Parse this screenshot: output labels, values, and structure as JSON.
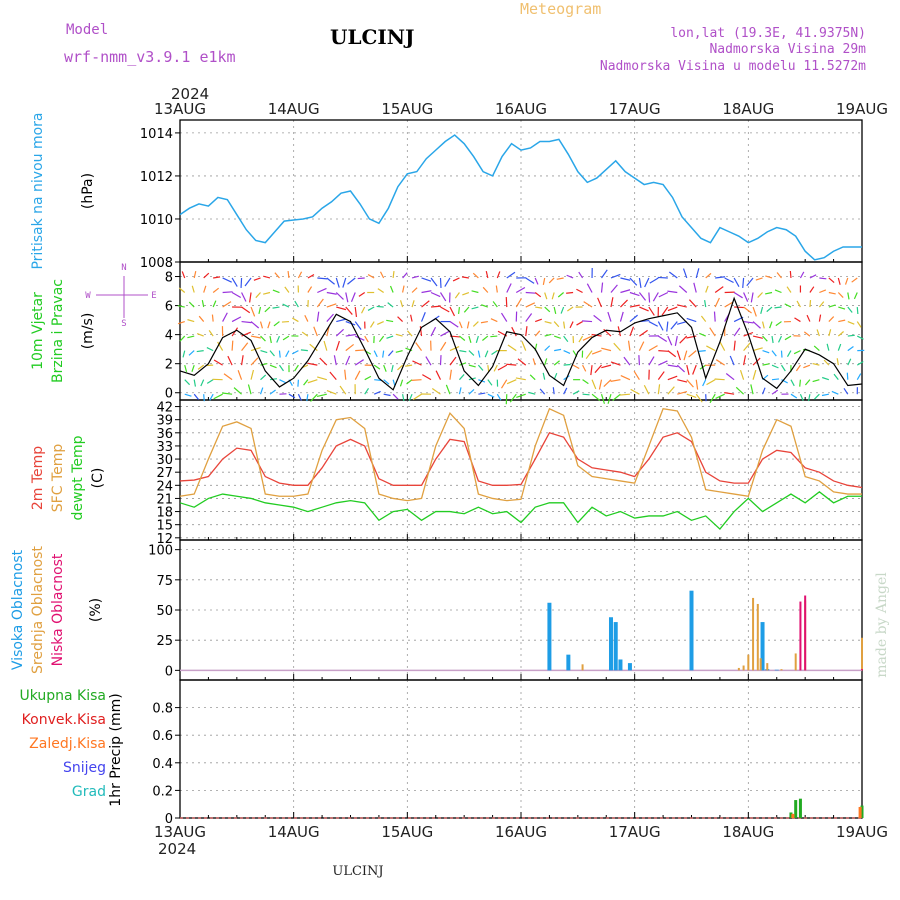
{
  "header": {
    "model_label": "Model",
    "model_name": "wrf-nmm_v3.9.1  e1km",
    "station": "ULCINJ",
    "product": "Meteogram",
    "coords": "lon,lat (19.3E, 41.9375N)",
    "elevation": "Nadmorska Visina 29m",
    "model_elevation": "Nadmorska Visina u modelu 11.5272m",
    "footer_station": "ULCINJ",
    "credit": "made by Angel"
  },
  "time_axis": {
    "year": "2024",
    "days": [
      "13AUG",
      "14AUG",
      "15AUG",
      "16AUG",
      "17AUG",
      "18AUG",
      "19AUG"
    ]
  },
  "colors": {
    "pressure": "#2aa6e8",
    "wind_speed": "#000000",
    "t2m": "#e8443a",
    "sfc": "#e0a040",
    "dewpt": "#22cc22",
    "high_cloud": "#1e9de6",
    "mid_cloud": "#e0a040",
    "low_cloud": "#e01070",
    "total_precip": "#22aa22",
    "conv_precip": "#e02020",
    "frz_precip": "#ff7722",
    "snow": "#4444ee",
    "hail": "#22bbbb",
    "model_title": "#b050c8",
    "product_title": "#f0c070",
    "wind_dir_label": "#b050c8"
  },
  "wind_legend": {
    "north": "N",
    "west": "W",
    "east": "E",
    "south": "S"
  },
  "panels": [
    {
      "id": "pressure",
      "labels": [
        "Pritisak na nivou mora"
      ],
      "unit": "(hPa)"
    },
    {
      "id": "wind",
      "labels": [
        "10m Vjetar",
        "Brzina i Pravac"
      ],
      "unit": "(m/s)"
    },
    {
      "id": "temp",
      "labels": [
        "2m Temp",
        "SFC Temp",
        "dewpt Temp"
      ],
      "unit": "(C)"
    },
    {
      "id": "cloud",
      "labels": [
        "Visoka Oblacnost",
        "Srednja Oblacnost",
        "Niska Oblacnost"
      ],
      "unit": "(%)"
    },
    {
      "id": "precip",
      "labels": [
        "Ukupna Kisa",
        "Konvek.Kisa",
        "Zaledj.Kisa",
        "Snijeg",
        "Grad"
      ],
      "unit": "1hr Precip (mm)"
    }
  ],
  "chart_data": [
    {
      "type": "line",
      "panel": "pressure",
      "ylabel": "Pritisak na nivou mora (hPa)",
      "ylim": [
        1008,
        1014.6
      ],
      "yticks": [
        1008,
        1010,
        1012,
        1014
      ],
      "grid": true,
      "x": [
        0,
        2,
        4,
        6,
        8,
        10,
        12,
        14,
        16,
        18,
        20,
        22,
        24,
        26,
        28,
        30,
        32,
        34,
        36,
        38,
        40,
        42,
        44,
        46,
        48,
        50,
        52,
        54,
        56,
        58,
        60,
        62,
        64,
        66,
        68,
        70,
        72,
        74,
        76,
        78,
        80,
        82,
        84,
        86,
        88,
        90,
        92,
        94,
        96,
        98,
        100,
        102,
        104,
        106,
        108,
        110,
        112,
        114,
        116,
        118,
        120,
        122,
        124,
        126,
        128,
        130,
        132,
        134,
        136,
        138,
        140,
        142,
        144
      ],
      "series": [
        {
          "values": [
            1010.2,
            1010.5,
            1010.7,
            1010.6,
            1011.0,
            1010.9,
            1010.2,
            1009.5,
            1009.0,
            1008.9,
            1009.4,
            1009.9,
            1009.95,
            1010.0,
            1010.1,
            1010.5,
            1010.8,
            1011.2,
            1011.3,
            1010.7,
            1010.0,
            1009.8,
            1010.5,
            1011.5,
            1012.1,
            1012.2,
            1012.8,
            1013.2,
            1013.6,
            1013.9,
            1013.5,
            1012.9,
            1012.2,
            1012.0,
            1012.9,
            1013.5,
            1013.2,
            1013.3,
            1013.6,
            1013.6,
            1013.7,
            1013.0,
            1012.2,
            1011.7,
            1011.9,
            1012.3,
            1012.7,
            1012.2,
            1011.9,
            1011.6,
            1011.7,
            1011.6,
            1011.0,
            1010.1,
            1009.6,
            1009.1,
            1008.9,
            1009.6,
            1009.4,
            1009.2,
            1008.9,
            1009.1,
            1009.4,
            1009.6,
            1009.5,
            1009.2,
            1008.5,
            1008.1,
            1008.2,
            1008.5,
            1008.7,
            1008.7,
            1008.7
          ]
        }
      ]
    },
    {
      "type": "line",
      "panel": "wind",
      "ylabel": "10m Vjetar Brzina i Pravac (m/s)",
      "ylim": [
        -0.5,
        9
      ],
      "yticks": [
        0,
        2,
        4,
        6,
        8
      ],
      "grid": true,
      "x": [
        0,
        3,
        6,
        9,
        12,
        15,
        18,
        21,
        24,
        27,
        30,
        33,
        36,
        39,
        42,
        45,
        48,
        51,
        54,
        57,
        60,
        63,
        66,
        69,
        72,
        75,
        78,
        81,
        84,
        87,
        90,
        93,
        96,
        99,
        102,
        105,
        108,
        111,
        114,
        117,
        120,
        123,
        126,
        129,
        132,
        135,
        138,
        141,
        144
      ],
      "series": [
        {
          "name": "speed",
          "values": [
            1.5,
            1.2,
            2.0,
            3.8,
            4.3,
            3.6,
            1.5,
            0.4,
            1.0,
            2.2,
            3.8,
            5.4,
            4.9,
            3.0,
            1.0,
            0.2,
            2.5,
            4.5,
            5.1,
            4.2,
            1.5,
            0.5,
            1.8,
            4.2,
            4.0,
            3.0,
            1.2,
            0.5,
            2.8,
            3.8,
            4.3,
            4.2,
            4.8,
            5.1,
            5.3,
            5.5,
            4.5,
            1.0,
            3.5,
            6.5,
            4.0,
            1.0,
            0.3,
            1.5,
            3.0,
            2.6,
            2.0,
            0.5,
            0.6
          ]
        }
      ]
    },
    {
      "type": "line",
      "panel": "temp",
      "ylabel": "Temp (C)",
      "ylim": [
        11.5,
        43.5
      ],
      "yticks": [
        12,
        15,
        18,
        21,
        24,
        27,
        30,
        33,
        36,
        39,
        42
      ],
      "grid": true,
      "x": [
        0,
        3,
        6,
        9,
        12,
        15,
        18,
        21,
        24,
        27,
        30,
        33,
        36,
        39,
        42,
        45,
        48,
        51,
        54,
        57,
        60,
        63,
        66,
        69,
        72,
        75,
        78,
        81,
        84,
        87,
        90,
        93,
        96,
        99,
        102,
        105,
        108,
        111,
        114,
        117,
        120,
        123,
        126,
        129,
        132,
        135,
        138,
        141,
        144
      ],
      "series": [
        {
          "name": "2m Temp",
          "values": [
            25.0,
            25.2,
            26.0,
            30.0,
            32.5,
            32.0,
            26.0,
            24.5,
            24.0,
            24.0,
            28.0,
            33.0,
            34.5,
            33.0,
            25.5,
            24.0,
            24.0,
            24.0,
            30.0,
            34.5,
            34.0,
            25.0,
            24.0,
            24.0,
            24.2,
            30.0,
            36.0,
            35.0,
            30.0,
            28.0,
            27.5,
            27.0,
            26.0,
            30.0,
            35.0,
            36.0,
            34.0,
            27.0,
            25.0,
            24.5,
            24.5,
            30.0,
            32.0,
            31.5,
            28.0,
            27.0,
            25.0,
            24.0,
            23.5
          ]
        },
        {
          "name": "SFC Temp",
          "values": [
            21.5,
            22.0,
            30.0,
            37.5,
            38.5,
            37.0,
            22.0,
            21.5,
            21.5,
            22.0,
            32.0,
            39.0,
            39.5,
            37.0,
            22.0,
            21.0,
            20.5,
            21.0,
            33.0,
            40.5,
            37.0,
            22.0,
            21.0,
            20.5,
            20.8,
            33.0,
            41.5,
            40.0,
            28.5,
            26.0,
            25.5,
            25.0,
            24.5,
            33.0,
            41.5,
            41.0,
            35.0,
            23.0,
            22.5,
            22.0,
            21.5,
            32.0,
            39.0,
            37.5,
            26.0,
            25.0,
            22.5,
            22.0,
            22.0
          ]
        },
        {
          "name": "dewpt Temp",
          "values": [
            20.0,
            19.0,
            21.0,
            22.0,
            21.5,
            21.0,
            20.0,
            19.5,
            19.0,
            18.0,
            19.0,
            20.0,
            20.5,
            20.0,
            16.0,
            18.0,
            18.5,
            16.0,
            18.0,
            18.0,
            17.5,
            19.0,
            17.5,
            18.0,
            15.5,
            19.0,
            20.0,
            20.0,
            15.5,
            19.0,
            17.0,
            18.0,
            16.5,
            17.0,
            17.0,
            18.0,
            16.0,
            17.0,
            14.0,
            18.0,
            21.0,
            18.0,
            20.0,
            22.0,
            20.0,
            22.5,
            20.0,
            21.5,
            21.5
          ]
        }
      ]
    },
    {
      "type": "bar",
      "panel": "cloud",
      "ylabel": "Oblacnost (%)",
      "ylim": [
        -8,
        108
      ],
      "yticks": [
        0,
        25,
        50,
        75,
        100
      ],
      "grid": true,
      "series": [
        {
          "name": "Visoka Oblacnost",
          "points": [
            [
              78,
              56
            ],
            [
              82,
              13
            ],
            [
              91,
              44
            ],
            [
              92,
              40
            ],
            [
              93,
              9
            ],
            [
              95,
              6
            ],
            [
              108,
              66
            ],
            [
              123,
              40
            ],
            [
              124,
              1
            ],
            [
              126,
              0.5
            ]
          ]
        },
        {
          "name": "Srednja Oblacnost",
          "points": [
            [
              85,
              5
            ],
            [
              118,
              2
            ],
            [
              119,
              4
            ],
            [
              120,
              13
            ],
            [
              121,
              60
            ],
            [
              122,
              55
            ],
            [
              122.6,
              10
            ],
            [
              124,
              6
            ],
            [
              127,
              1
            ],
            [
              130,
              14
            ],
            [
              132,
              58
            ],
            [
              144,
              27
            ]
          ]
        },
        {
          "name": "Niska Oblacnost",
          "points": [
            [
              131,
              57
            ],
            [
              132,
              62
            ],
            [
              144,
              1
            ]
          ]
        }
      ]
    },
    {
      "type": "bar",
      "panel": "precip",
      "ylabel": "1hr Precip (mm)",
      "ylim": [
        0,
        1.0
      ],
      "yticks": [
        0,
        0.2,
        0.4,
        0.6,
        0.8
      ],
      "grid": true,
      "series": [
        {
          "name": "Ukupna Kisa",
          "points": [
            [
              129,
              0.04
            ],
            [
              130,
              0.13
            ],
            [
              131,
              0.14
            ],
            [
              144,
              0.09
            ]
          ]
        },
        {
          "name": "Zaledj.Kisa",
          "points": [
            [
              129.4,
              0.03
            ],
            [
              143.6,
              0.08
            ]
          ]
        }
      ]
    }
  ]
}
